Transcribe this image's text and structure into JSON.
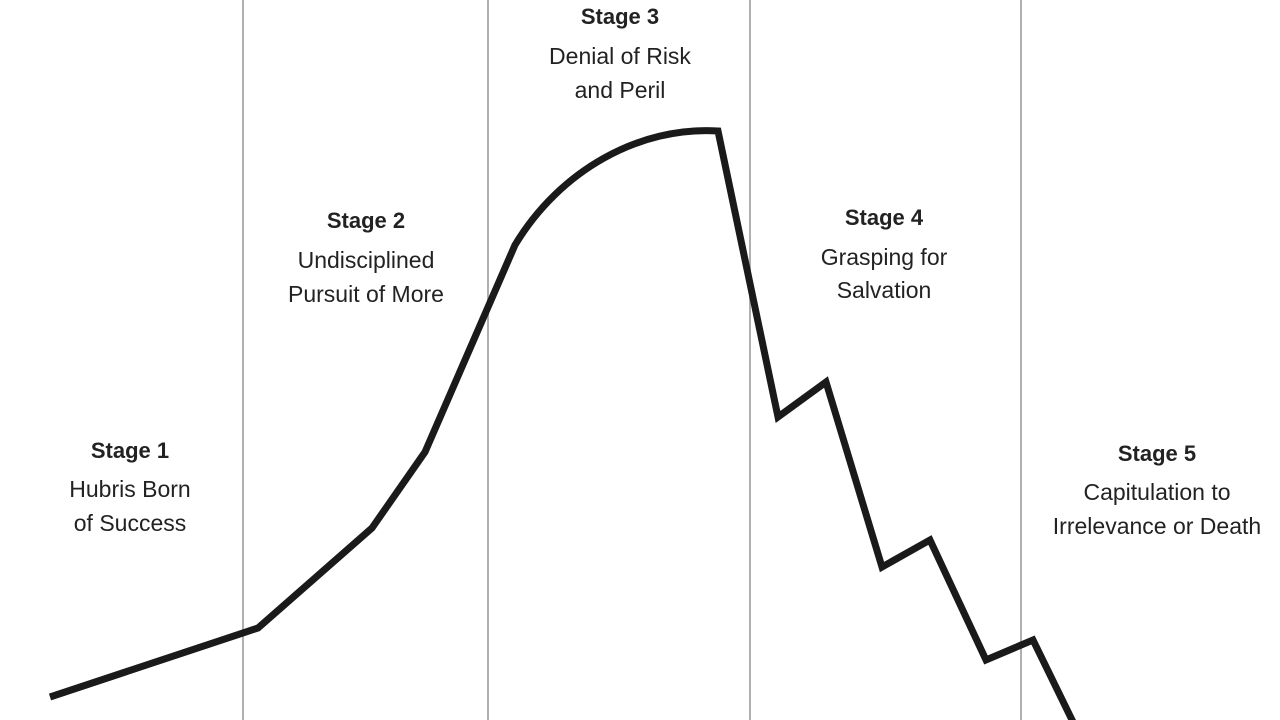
{
  "stages": [
    {
      "title": "Stage 1",
      "lines": [
        "Hubris Born",
        "of Success"
      ]
    },
    {
      "title": "Stage 2",
      "lines": [
        "Undisciplined",
        "Pursuit of More"
      ]
    },
    {
      "title": "Stage 3",
      "lines": [
        "Denial of Risk",
        "and Peril"
      ]
    },
    {
      "title": "Stage 4",
      "lines": [
        "Grasping for",
        "Salvation"
      ]
    },
    {
      "title": "Stage 5",
      "lines": [
        "Capitulation to",
        "Irrelevance or Death"
      ]
    }
  ]
}
